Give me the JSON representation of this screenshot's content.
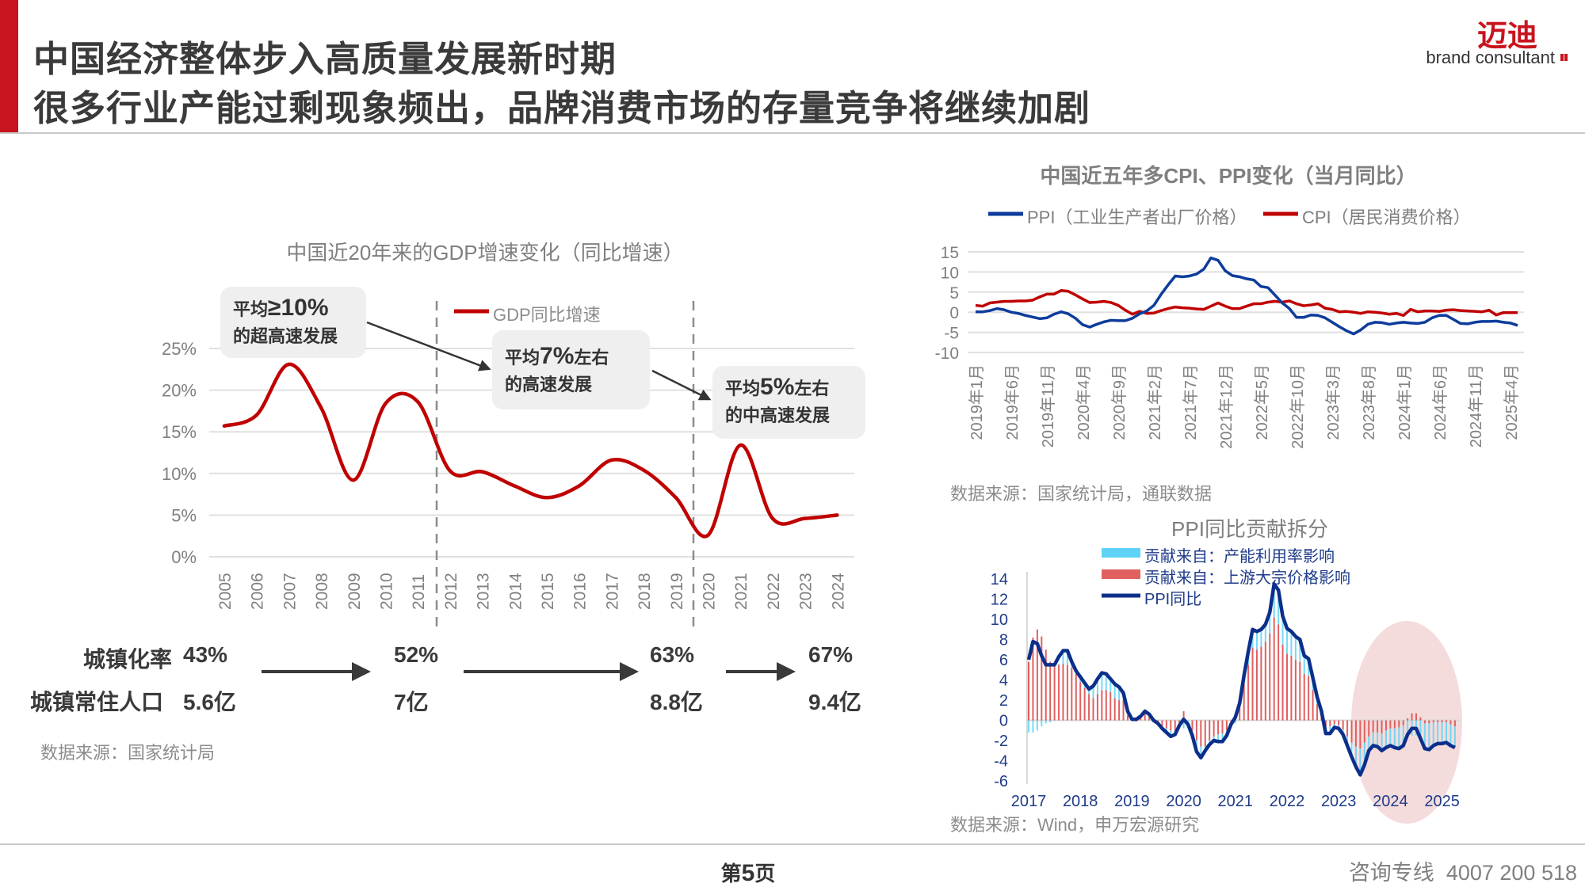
{
  "header": {
    "title_line1": "中国经济整体步入高质量发展新时期",
    "title_line2": "很多行业产能过剩现象频出，品牌消费市场的存量竞争将继续加剧",
    "logo_name": "迈迪",
    "logo_tagline": "brand consultant",
    "accent_color": "#c8141e"
  },
  "gdp_panel": {
    "callouts": [
      {
        "prefix": "平均",
        "emph": "≥10%",
        "suffix": "",
        "line2": "的超高速发展"
      },
      {
        "prefix": "平均",
        "emph": "7%",
        "suffix": "左右",
        "line2": "的高速发展"
      },
      {
        "prefix": "平均",
        "emph": "5%",
        "suffix": "左右",
        "line2": "的中高速发展"
      }
    ],
    "stats": [
      {
        "label": "城镇化率",
        "values": [
          "43%",
          "52%",
          "63%",
          "67%"
        ]
      },
      {
        "label": "城镇常住人口",
        "values": [
          "5.6亿",
          "7亿",
          "8.8亿",
          "9.4亿"
        ]
      }
    ],
    "source": "数据来源：国家统计局"
  },
  "cpi_panel": {
    "source": "数据来源：国家统计局，通联数据"
  },
  "ppi_panel": {
    "source": "数据来源：Wind，申万宏源研究"
  },
  "footer": {
    "page_prefix": "第",
    "page_number": "5",
    "page_suffix": "页",
    "hotline_label": "咨询专线",
    "hotline_number": "4007 200 518"
  },
  "chart_data": [
    {
      "type": "line",
      "title": "中国近20年来的GDP增速变化（同比增速）",
      "categories": [
        "2005",
        "2006",
        "2007",
        "2008",
        "2009",
        "2010",
        "2011",
        "2012",
        "2013",
        "2014",
        "2015",
        "2016",
        "2017",
        "2018",
        "2019",
        "2020",
        "2021",
        "2022",
        "2023",
        "2024"
      ],
      "series": [
        {
          "name": "GDP同比增速",
          "color": "#c00000",
          "values": [
            15.7,
            17.0,
            23.1,
            17.9,
            9.2,
            18.4,
            18.6,
            10.3,
            10.2,
            8.5,
            7.1,
            8.5,
            11.6,
            10.4,
            7.1,
            2.6,
            13.4,
            4.6,
            4.6,
            5.0
          ]
        }
      ],
      "yticks": [
        "0%",
        "5%",
        "10%",
        "15%",
        "20%",
        "25%"
      ],
      "ylim": [
        0,
        25
      ],
      "grid": true,
      "legend": "top",
      "period_dividers": [
        "2011/2012",
        "2019/2020"
      ]
    },
    {
      "type": "line",
      "title": "中国近五年多CPI、PPI变化（当月同比）",
      "x_labels": [
        "2019年1月",
        "2019年6月",
        "2019年11月",
        "2020年4月",
        "2020年9月",
        "2021年2月",
        "2021年7月",
        "2021年12月",
        "2022年5月",
        "2022年10月",
        "2023年3月",
        "2023年8月",
        "2024年1月",
        "2024年6月",
        "2024年11月",
        "2025年4月"
      ],
      "x_range": [
        "2019-01",
        "2025-05"
      ],
      "yticks": [
        "15",
        "10",
        "5",
        "0",
        "-5",
        "-10"
      ],
      "ylim": [
        -10,
        15
      ],
      "grid": true,
      "legend": "top",
      "series": [
        {
          "name": "PPI（工业生产者出厂价格）",
          "color": "#0d3c9c",
          "values": [
            0.1,
            0.1,
            0.4,
            0.9,
            0.6,
            0.0,
            -0.3,
            -0.8,
            -1.2,
            -1.6,
            -1.4,
            -0.5,
            0.1,
            -0.4,
            -1.5,
            -3.1,
            -3.7,
            -3.0,
            -2.4,
            -2.0,
            -2.1,
            -2.1,
            -1.5,
            -0.4,
            0.3,
            1.7,
            4.4,
            6.8,
            9.0,
            8.8,
            9.0,
            9.5,
            10.7,
            13.5,
            12.9,
            10.3,
            9.1,
            8.8,
            8.3,
            8.0,
            6.4,
            6.1,
            4.2,
            2.3,
            0.9,
            -1.3,
            -1.3,
            -0.7,
            -0.8,
            -1.4,
            -2.5,
            -3.6,
            -4.6,
            -5.4,
            -4.4,
            -3.0,
            -2.5,
            -2.6,
            -3.0,
            -2.7,
            -2.5,
            -2.7,
            -2.8,
            -2.5,
            -1.4,
            -0.8,
            -0.8,
            -1.8,
            -2.8,
            -2.9,
            -2.5,
            -2.3,
            -2.3,
            -2.2,
            -2.5,
            -2.7,
            -3.3
          ]
        },
        {
          "name": "CPI（居民消费价格）",
          "color": "#c00000",
          "values": [
            1.7,
            1.5,
            2.3,
            2.5,
            2.7,
            2.7,
            2.8,
            2.8,
            3.0,
            3.8,
            4.5,
            4.5,
            5.4,
            5.2,
            4.3,
            3.3,
            2.4,
            2.5,
            2.7,
            2.4,
            1.7,
            0.5,
            -0.5,
            0.2,
            -0.3,
            -0.2,
            0.4,
            0.9,
            1.3,
            1.1,
            1.0,
            0.8,
            0.7,
            1.5,
            2.3,
            1.5,
            0.9,
            0.9,
            1.5,
            2.1,
            2.1,
            2.5,
            2.7,
            2.5,
            2.8,
            2.1,
            1.6,
            1.8,
            2.1,
            1.0,
            0.7,
            0.1,
            0.2,
            0.0,
            -0.3,
            0.1,
            0.0,
            -0.2,
            -0.5,
            -0.3,
            -0.8,
            0.7,
            0.1,
            0.3,
            0.3,
            0.2,
            0.5,
            0.6,
            0.4,
            0.3,
            0.2,
            0.1,
            0.5,
            -0.7,
            -0.1,
            -0.1,
            -0.1
          ]
        }
      ]
    },
    {
      "type": "bar+line",
      "title": "PPI同比贡献拆分",
      "x_labels": [
        "2017",
        "2018",
        "2019",
        "2020",
        "2021",
        "2022",
        "2023",
        "2024",
        "2025"
      ],
      "x_range": [
        "2017-01",
        "2025-04"
      ],
      "yticks": [
        "14",
        "12",
        "10",
        "8",
        "6",
        "4",
        "2",
        "0",
        "-2",
        "-4",
        "-6"
      ],
      "ylim": [
        -6,
        14
      ],
      "legend": "top",
      "highlight": {
        "region": "2024-2025",
        "color": "#f5dcdc"
      },
      "series": [
        {
          "name": "贡献来自：产能利用率影响",
          "type": "bar",
          "color": "#5fd3f5",
          "values": [
            -1.2,
            -1.2,
            -1.0,
            -0.6,
            -0.3,
            -0.2,
            0,
            0.1,
            1.0,
            1.2,
            0.6,
            0.3,
            0.5,
            0.5,
            0.5,
            1.2,
            1.5,
            1.7,
            1.6,
            1.3,
            1.4,
            1.3,
            0.7,
            0.4,
            0,
            0.2,
            0.2,
            0.2,
            0.2,
            0.2,
            0,
            -0.2,
            -0.4,
            -0.6,
            -0.4,
            -0.2,
            -0.8,
            -0.4,
            -0.5,
            -1.1,
            -1.1,
            -0.4,
            -0.4,
            -0.4,
            -0.7,
            -0.8,
            -0.5,
            -0.2,
            -0.3,
            0.2,
            0.8,
            1.3,
            1.8,
            1.8,
            1.7,
            1.7,
            2.1,
            3.3,
            3.4,
            2.8,
            2.5,
            2.4,
            2.3,
            2.2,
            1.8,
            1.7,
            1.2,
            0.7,
            0.4,
            -0.7,
            -0.7,
            -0.3,
            -0.3,
            -0.5,
            -0.9,
            -1.4,
            -2.0,
            -2.6,
            -2.2,
            -1.4,
            -1.3,
            -1.4,
            -1.7,
            -1.7,
            -1.7,
            -1.9,
            -2.1,
            -2.0,
            -1.6,
            -1.5,
            -1.5,
            -2.1,
            -2.5,
            -2.6,
            -2.3,
            -2.1,
            -2.1,
            -2.0,
            -2.1,
            -2.1
          ]
        },
        {
          "name": "贡献来自：上游大宗价格影响",
          "type": "bar",
          "color": "#e06060",
          "values": [
            5.8,
            8.2,
            9.0,
            8.3,
            7.0,
            5.8,
            5.6,
            5.5,
            5.6,
            5.5,
            5.2,
            4.6,
            3.8,
            3.2,
            2.6,
            2.2,
            2.6,
            3.0,
            3.0,
            2.8,
            2.2,
            2.0,
            2.0,
            0.5,
            0.1,
            -0.1,
            0.2,
            0.7,
            0.4,
            -0.2,
            -0.3,
            -0.6,
            -0.8,
            -1.0,
            -1.0,
            -0.3,
            0.9,
            0,
            -1.0,
            -2.0,
            -2.6,
            -2.6,
            -2.0,
            -1.6,
            -1.4,
            -1.3,
            -1.0,
            -0.2,
            0.6,
            1.5,
            3.6,
            5.5,
            7.2,
            7.0,
            7.3,
            7.8,
            8.6,
            10.2,
            9.5,
            7.5,
            6.6,
            6.4,
            6.0,
            5.8,
            4.6,
            4.4,
            3.0,
            1.6,
            0.5,
            -0.6,
            -0.6,
            -0.4,
            -0.5,
            -0.9,
            -1.6,
            -2.2,
            -2.6,
            -2.8,
            -2.2,
            -1.6,
            -1.2,
            -1.2,
            -1.3,
            -1.0,
            -0.8,
            -0.8,
            -0.7,
            -0.5,
            0.2,
            0.7,
            0.7,
            0.3,
            -0.3,
            -0.3,
            -0.2,
            -0.2,
            -0.2,
            -0.2,
            -0.4,
            -0.6
          ]
        },
        {
          "name": "PPI同比",
          "type": "line",
          "color": "#0b2f8a",
          "values": [
            6.0,
            7.8,
            7.6,
            6.4,
            5.5,
            5.5,
            5.5,
            6.3,
            6.9,
            6.9,
            5.8,
            4.9,
            4.3,
            3.7,
            3.1,
            3.4,
            4.1,
            4.7,
            4.6,
            4.1,
            3.6,
            3.3,
            2.7,
            0.9,
            0.1,
            0.1,
            0.4,
            0.9,
            0.6,
            0.0,
            -0.3,
            -0.8,
            -1.2,
            -1.6,
            -1.4,
            -0.5,
            0.1,
            -0.4,
            -1.5,
            -3.1,
            -3.7,
            -3.0,
            -2.4,
            -2.0,
            -2.1,
            -2.1,
            -1.5,
            -0.4,
            0.3,
            1.7,
            4.4,
            6.8,
            9.0,
            8.8,
            9.0,
            9.5,
            10.7,
            13.5,
            12.9,
            10.3,
            9.1,
            8.8,
            8.3,
            8.0,
            6.4,
            6.1,
            4.2,
            2.3,
            0.9,
            -1.3,
            -1.3,
            -0.7,
            -0.8,
            -1.4,
            -2.5,
            -3.6,
            -4.6,
            -5.4,
            -4.4,
            -3.0,
            -2.5,
            -2.6,
            -3.0,
            -2.7,
            -2.5,
            -2.7,
            -2.8,
            -2.5,
            -1.4,
            -0.8,
            -0.8,
            -1.8,
            -2.8,
            -2.9,
            -2.5,
            -2.3,
            -2.3,
            -2.2,
            -2.5,
            -2.7
          ]
        }
      ]
    }
  ]
}
